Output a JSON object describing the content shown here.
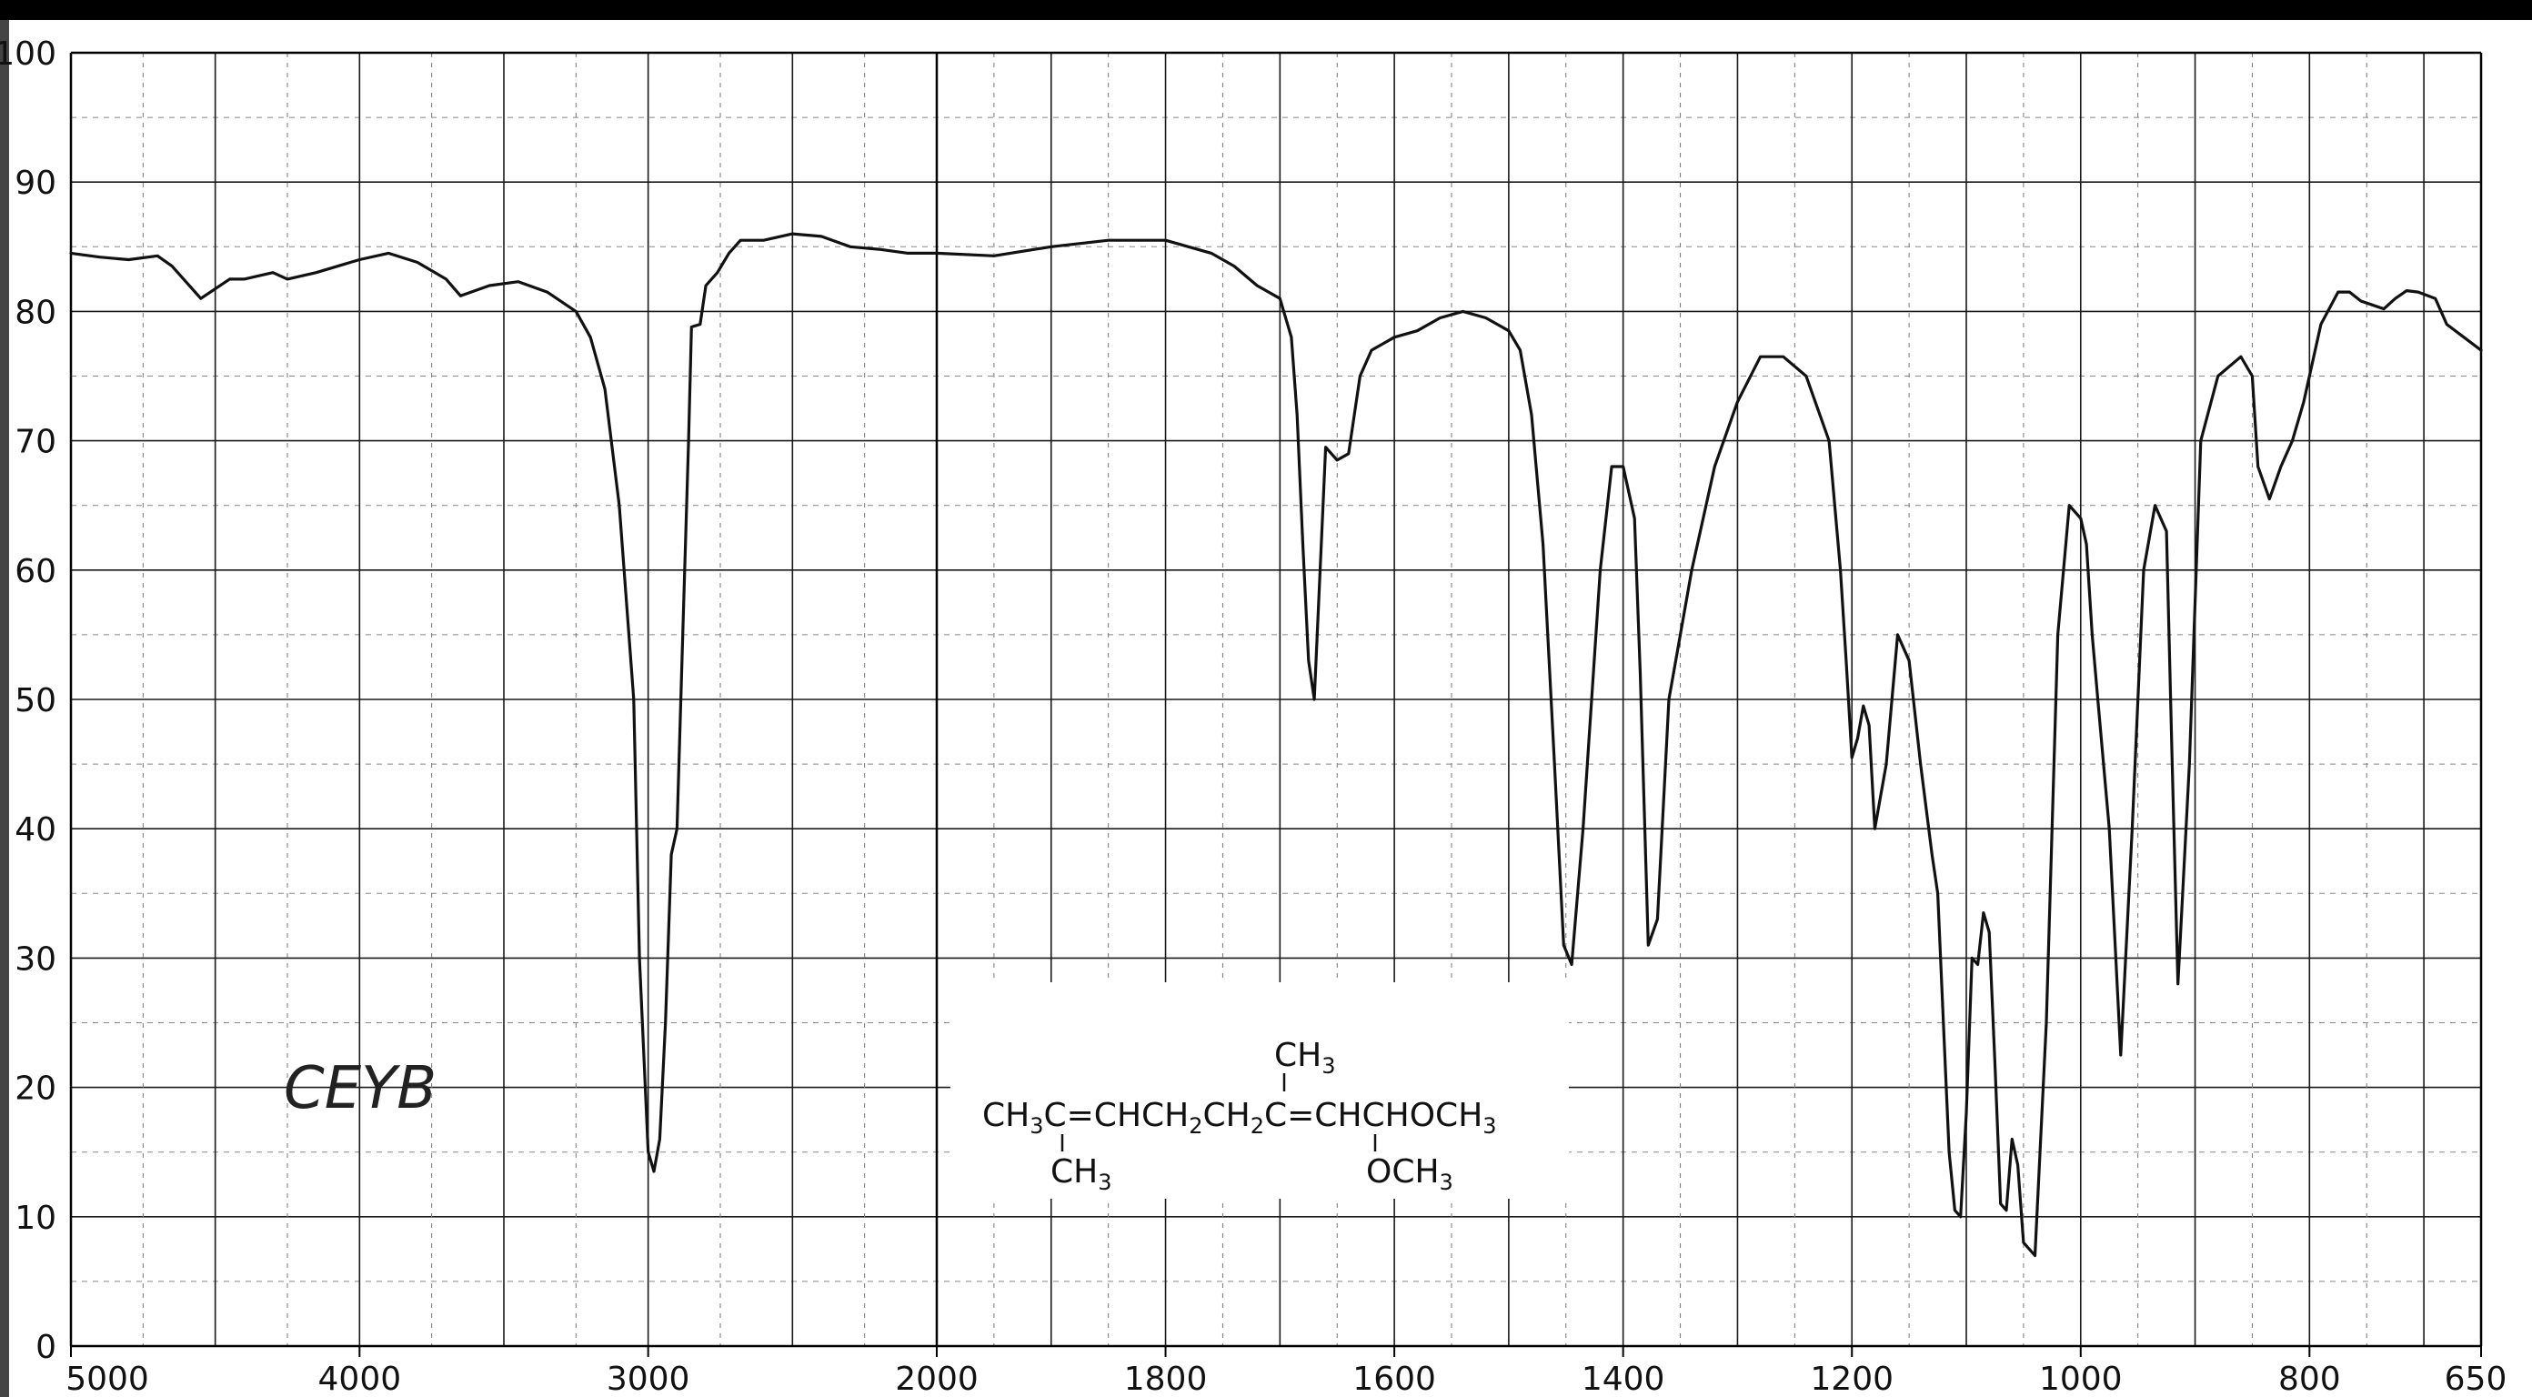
{
  "chart_data": {
    "type": "line",
    "title": "",
    "xlabel": "",
    "ylabel": "",
    "x_tick_labels": [
      "5000",
      "4000",
      "3000",
      "2000",
      "1800",
      "1600",
      "1400",
      "1200",
      "1000",
      "800",
      "650"
    ],
    "y_tick_labels": [
      "0",
      "10",
      "20",
      "30",
      "40",
      "50",
      "60",
      "70",
      "80",
      "90",
      "100"
    ],
    "ylim": [
      0,
      100
    ],
    "xlim": [
      5000,
      650
    ],
    "x_scale": "piecewise-linear (5000-2000 compressed, 2000-650 expanded)",
    "grid": true,
    "series": [
      {
        "x": [
          5000,
          4900,
          4800,
          4700,
          4650,
          4550,
          4450,
          4400,
          4300,
          4250,
          4150,
          4000,
          3900,
          3800,
          3700,
          3650,
          3550,
          3450,
          3350,
          3250,
          3200,
          3150,
          3100,
          3050,
          3030,
          3000,
          2980,
          2960,
          2940,
          2920,
          2900,
          2880,
          2860,
          2850,
          2820,
          2800,
          2760,
          2720,
          2680,
          2600,
          2500,
          2400,
          2300,
          2200,
          2100,
          2000,
          1950,
          1900,
          1850,
          1800,
          1780,
          1760,
          1740,
          1720,
          1700,
          1690,
          1685,
          1680,
          1675,
          1670,
          1660,
          1650,
          1640,
          1630,
          1620,
          1600,
          1580,
          1560,
          1540,
          1520,
          1500,
          1490,
          1480,
          1470,
          1460,
          1452,
          1445,
          1435,
          1420,
          1410,
          1400,
          1390,
          1385,
          1378,
          1370,
          1360,
          1340,
          1320,
          1300,
          1280,
          1260,
          1240,
          1220,
          1210,
          1205,
          1200,
          1195,
          1190,
          1185,
          1180,
          1170,
          1160,
          1150,
          1140,
          1130,
          1125,
          1120,
          1115,
          1110,
          1105,
          1100,
          1095,
          1090,
          1085,
          1080,
          1075,
          1070,
          1065,
          1060,
          1055,
          1050,
          1040,
          1030,
          1020,
          1010,
          1000,
          995,
          990,
          985,
          975,
          965,
          955,
          945,
          935,
          925,
          920,
          915,
          905,
          895,
          880,
          860,
          850,
          845,
          835,
          825,
          815,
          805,
          790,
          775,
          765,
          755,
          745,
          735,
          725,
          715,
          705,
          690,
          680,
          665,
          650
        ],
        "y": [
          84.5,
          84.2,
          84.0,
          84.3,
          83.5,
          81.0,
          82.5,
          82.5,
          83.0,
          82.5,
          83.0,
          84.0,
          84.5,
          83.8,
          82.5,
          81.2,
          82.0,
          82.3,
          81.5,
          80.0,
          78.0,
          74.0,
          65.0,
          50.0,
          30.0,
          15.0,
          13.5,
          16.0,
          25.0,
          38.0,
          40.0,
          55.0,
          70.0,
          78.8,
          79.0,
          82.0,
          83.0,
          84.5,
          85.5,
          85.5,
          86.0,
          85.8,
          85.0,
          84.8,
          84.5,
          84.5,
          84.3,
          85.0,
          85.5,
          85.5,
          85.0,
          84.5,
          83.5,
          82.0,
          81.0,
          78.0,
          72.0,
          62.0,
          53.0,
          50.0,
          69.5,
          68.5,
          69.0,
          75.0,
          77.0,
          78.0,
          78.5,
          79.5,
          80.0,
          79.5,
          78.5,
          77.0,
          72.0,
          62.0,
          45.0,
          31.0,
          29.5,
          40.0,
          60.0,
          68.0,
          68.0,
          64.0,
          52.0,
          31.0,
          33.0,
          50.0,
          60.0,
          68.0,
          73.0,
          76.5,
          76.5,
          75.0,
          70.0,
          60.0,
          53.0,
          45.5,
          47.0,
          49.5,
          48.0,
          40.0,
          45.0,
          55.0,
          53.0,
          45.0,
          38.0,
          35.0,
          25.0,
          15.0,
          10.5,
          10.0,
          18.0,
          30.0,
          29.5,
          33.5,
          32.0,
          22.0,
          11.0,
          10.5,
          16.0,
          14.0,
          8.0,
          7.0,
          25.0,
          55.0,
          65.0,
          64.0,
          62.0,
          55.0,
          50.0,
          40.0,
          22.5,
          40.0,
          60.0,
          65.0,
          63.0,
          45.0,
          28.0,
          45.0,
          70.0,
          75.0,
          76.5,
          75.0,
          68.0,
          65.5,
          68.0,
          70.0,
          73.0,
          79.0,
          81.5,
          81.5,
          80.8,
          80.5,
          80.2,
          81.0,
          81.6,
          81.5,
          81.0,
          79.0,
          78.0,
          77.0
        ]
      }
    ]
  },
  "structure": {
    "methyl_top": "CH",
    "methyl_top_sub": "3",
    "main_chain": [
      {
        "t": "CH"
      },
      {
        "s": "3"
      },
      {
        "t": "C=CHCH"
      },
      {
        "s": "2"
      },
      {
        "t": "CH"
      },
      {
        "s": "2"
      },
      {
        "t": "C=CHCHOCH"
      },
      {
        "s": "3"
      }
    ],
    "methyl_bottom": "CH",
    "methyl_bottom_sub": "3",
    "methoxy_bottom": "OCH",
    "methoxy_bottom_sub": "3"
  },
  "annotation": {
    "handwritten": "CEYB"
  }
}
